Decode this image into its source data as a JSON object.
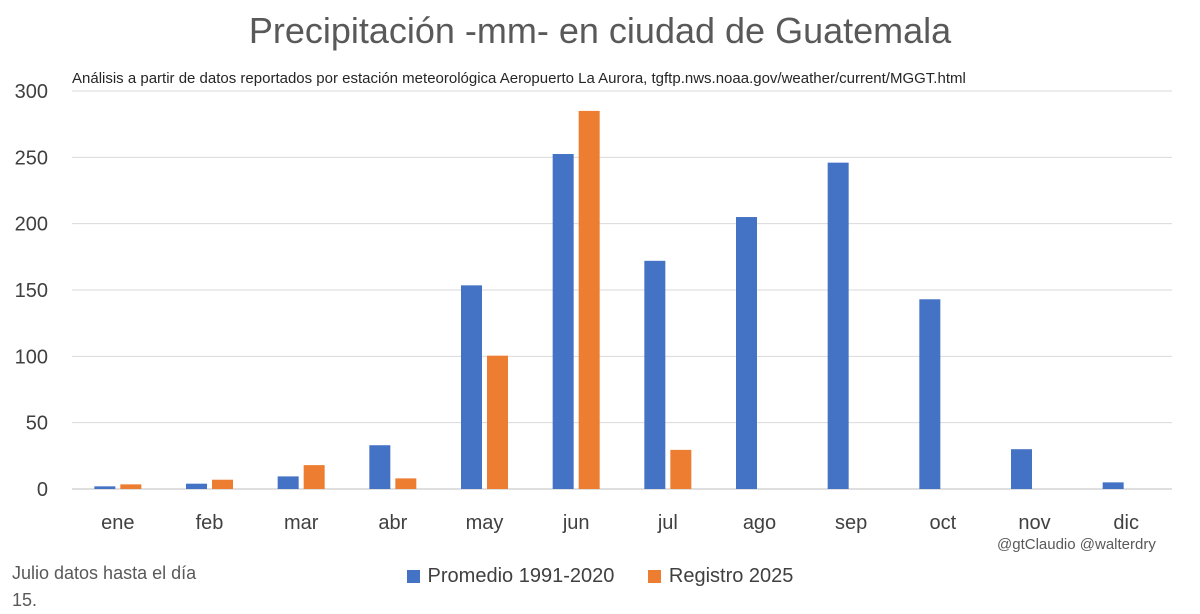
{
  "chart_data": {
    "type": "bar",
    "title": "Precipitación -mm- en ciudad de Guatemala",
    "subtitle": "Análisis a partir de datos reportados por estación meteorológica Aeropuerto La Aurora, tgftp.nws.noaa.gov/weather/current/MGGT.html",
    "categories": [
      "ene",
      "feb",
      "mar",
      "abr",
      "may",
      "jun",
      "jul",
      "ago",
      "sep",
      "oct",
      "nov",
      "dic"
    ],
    "series": [
      {
        "name": "Promedio 1991-2020",
        "color": "#4472C4",
        "values": [
          2,
          4,
          9.5,
          33,
          153.5,
          252.5,
          172,
          205,
          246,
          143,
          30,
          5
        ]
      },
      {
        "name": "Registro 2025",
        "color": "#ED7D31",
        "values": [
          3.5,
          7,
          18,
          8,
          100.5,
          285,
          29.5,
          null,
          null,
          null,
          null,
          null
        ]
      }
    ],
    "ylim": [
      0,
      300
    ],
    "yticks": [
      0,
      50,
      100,
      150,
      200,
      250,
      300
    ],
    "grid": true,
    "legend": "bottom"
  },
  "note": "Julio datos hasta el día 15.",
  "credit": "@gtClaudio @walterdry"
}
